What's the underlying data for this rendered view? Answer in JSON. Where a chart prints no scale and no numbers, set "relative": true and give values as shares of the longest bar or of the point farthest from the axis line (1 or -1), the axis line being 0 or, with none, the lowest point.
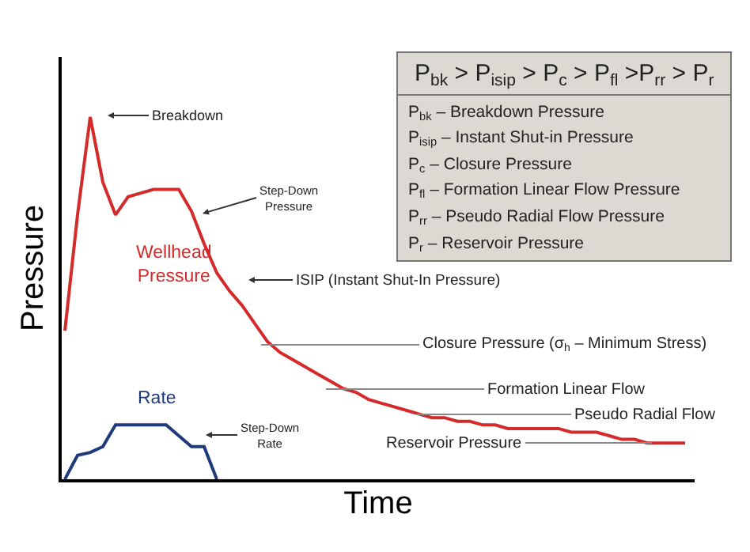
{
  "chart_data": {
    "type": "line",
    "relative": true,
    "xlabel": "Time",
    "ylabel": "Pressure",
    "legend": false,
    "grid": false,
    "marker": "none",
    "line_style": "solid",
    "categories": [
      null,
      null,
      null,
      null,
      null,
      null,
      null,
      null,
      null,
      null,
      null,
      null,
      null,
      null,
      null,
      null,
      null,
      null,
      null,
      null,
      null,
      null,
      null,
      null,
      null,
      null,
      null,
      null,
      null,
      null,
      null,
      null,
      null,
      null,
      null,
      null,
      null,
      null,
      null,
      null,
      null,
      null,
      null,
      null,
      null,
      null,
      null,
      null,
      null,
      null
    ],
    "series": [
      {
        "name": "Wellhead Pressure",
        "color": "#d42a2a",
        "values": [
          0.41,
          0.73,
          1.0,
          0.82,
          0.73,
          0.78,
          0.79,
          0.8,
          0.8,
          0.8,
          0.74,
          0.65,
          0.57,
          0.52,
          0.48,
          0.43,
          0.38,
          0.35,
          0.33,
          0.31,
          0.29,
          0.27,
          0.25,
          0.24,
          0.22,
          0.21,
          0.2,
          0.19,
          0.18,
          0.17,
          0.17,
          0.16,
          0.16,
          0.15,
          0.15,
          0.14,
          0.14,
          0.14,
          0.14,
          0.14,
          0.13,
          0.13,
          0.13,
          0.12,
          0.11,
          0.11,
          0.1,
          0.1,
          0.1,
          0.1
        ]
      },
      {
        "name": "Rate",
        "color": "#1f3a7a",
        "values": [
          0,
          0.066,
          0.074,
          0.09,
          0.15,
          0.15,
          0.15,
          0.15,
          0.15,
          0.12,
          0.09,
          0.09,
          0,
          null,
          null,
          null,
          null,
          null,
          null,
          null,
          null,
          null,
          null,
          null,
          null,
          null,
          null,
          null,
          null,
          null,
          null,
          null,
          null,
          null,
          null,
          null,
          null,
          null,
          null,
          null,
          null,
          null,
          null,
          null,
          null,
          null,
          null,
          null,
          null,
          null
        ]
      }
    ],
    "annotations": [
      "Breakdown",
      "Step-Down\nPressure",
      "ISIP (Instant Shut-In Pressure)",
      "Closure Pressure (σ$_{h}$ – Minimum Stress)",
      "Formation Linear Flow",
      "Pseudo Radial Flow",
      "Reservoir Pressure",
      "Step-Down\nRate",
      "P$_{bk}$ > P$_{isip}$ > P$_{c}$ > P$_{fl}$ >P$_{rr}$ > P$_{r}$",
      "P$_{bk}$ – Breakdown Pressure",
      "P$_{isip}$ – Instant Shut-in Pressure",
      "P$_{c}$ – Closure Pressure",
      "P$_{fl}$ – Formation Linear Flow Pressure",
      "P$_{rr}$ – Pseudo Radial Flow Pressure",
      "P$_{r}$ – Reservoir Pressure"
    ]
  }
}
